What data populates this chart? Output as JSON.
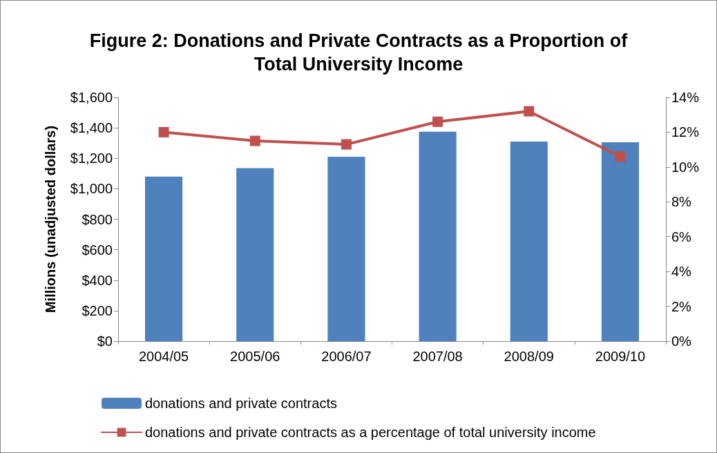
{
  "chart_data": {
    "type": "bar",
    "title": "Figure 2: Donations and Private Contracts as a Proportion of\nTotal University Income",
    "ylabel": "Millions (unadjusted dollars)",
    "categories": [
      "2004/05",
      "2005/06",
      "2006/07",
      "2007/08",
      "2008/09",
      "2009/10"
    ],
    "series": [
      {
        "name": "donations and private contracts",
        "color": "#4f81bd",
        "values": [
          1080,
          1135,
          1210,
          1375,
          1310,
          1305
        ]
      },
      {
        "name": "donations and private contracts as a percentage of total university income",
        "type": "line",
        "axis": "y2",
        "color": "#c0504d",
        "values": [
          12.0,
          11.5,
          11.3,
          12.6,
          13.2,
          10.6
        ]
      }
    ],
    "ylim": [
      0,
      1600
    ],
    "yticks": [
      {
        "value": 0,
        "label": "$0"
      },
      {
        "value": 200,
        "label": "$200"
      },
      {
        "value": 400,
        "label": "$400"
      },
      {
        "value": 600,
        "label": "$600"
      },
      {
        "value": 800,
        "label": "$800"
      },
      {
        "value": 1000,
        "label": "$1,000"
      },
      {
        "value": 1200,
        "label": "$1,200"
      },
      {
        "value": 1400,
        "label": "$1,400"
      },
      {
        "value": 1600,
        "label": "$1,600"
      }
    ],
    "y2lim": [
      0,
      14
    ],
    "y2ticks": [
      {
        "value": 0,
        "label": "0%"
      },
      {
        "value": 2,
        "label": "2%"
      },
      {
        "value": 4,
        "label": "4%"
      },
      {
        "value": 6,
        "label": "6%"
      },
      {
        "value": 8,
        "label": "8%"
      },
      {
        "value": 10,
        "label": "10%"
      },
      {
        "value": 12,
        "label": "12%"
      },
      {
        "value": 14,
        "label": "14%"
      }
    ],
    "grid": false,
    "legend": "bottom left",
    "marker": "square",
    "line_style": "solid"
  }
}
